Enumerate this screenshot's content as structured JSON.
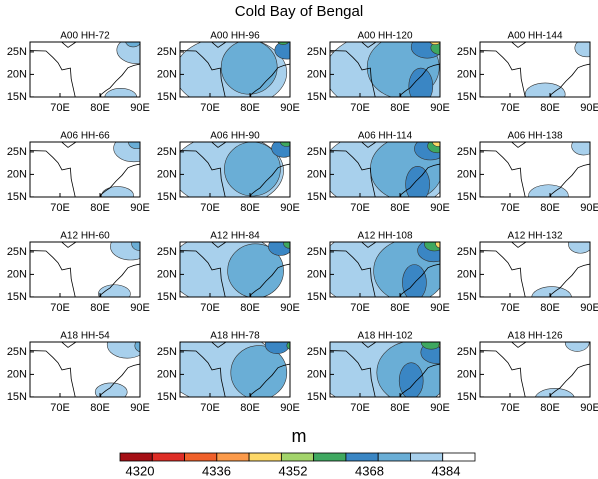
{
  "title": "Cold Bay of Bengal",
  "panels": [
    {
      "title": "A00 HH-72"
    },
    {
      "title": "A00 HH-96"
    },
    {
      "title": "A00 HH-120"
    },
    {
      "title": "A00 HH-144"
    },
    {
      "title": "A06 HH-66"
    },
    {
      "title": "A06 HH-90"
    },
    {
      "title": "A06 HH-114"
    },
    {
      "title": "A06 HH-138"
    },
    {
      "title": "A12 HH-60"
    },
    {
      "title": "A12 HH-84"
    },
    {
      "title": "A12 HH-108"
    },
    {
      "title": "A12 HH-132"
    },
    {
      "title": "A18 HH-54"
    },
    {
      "title": "A18 HH-78"
    },
    {
      "title": "A18 HH-102"
    },
    {
      "title": "A18 HH-126"
    }
  ],
  "lat_ticks": [
    "25N",
    "20N",
    "15N"
  ],
  "lon_ticks": [
    "70E",
    "80E",
    "90E"
  ],
  "colorbar": {
    "label": "m",
    "colors": [
      "#a50f15",
      "#de2d26",
      "#f0602a",
      "#fb9a4a",
      "#fdd868",
      "#a3d46b",
      "#3fa860",
      "#3a86c4",
      "#6aaed6",
      "#a8d0ec",
      "#ffffff"
    ],
    "ticks": [
      4320,
      4336,
      4352,
      4368,
      4384
    ]
  }
}
